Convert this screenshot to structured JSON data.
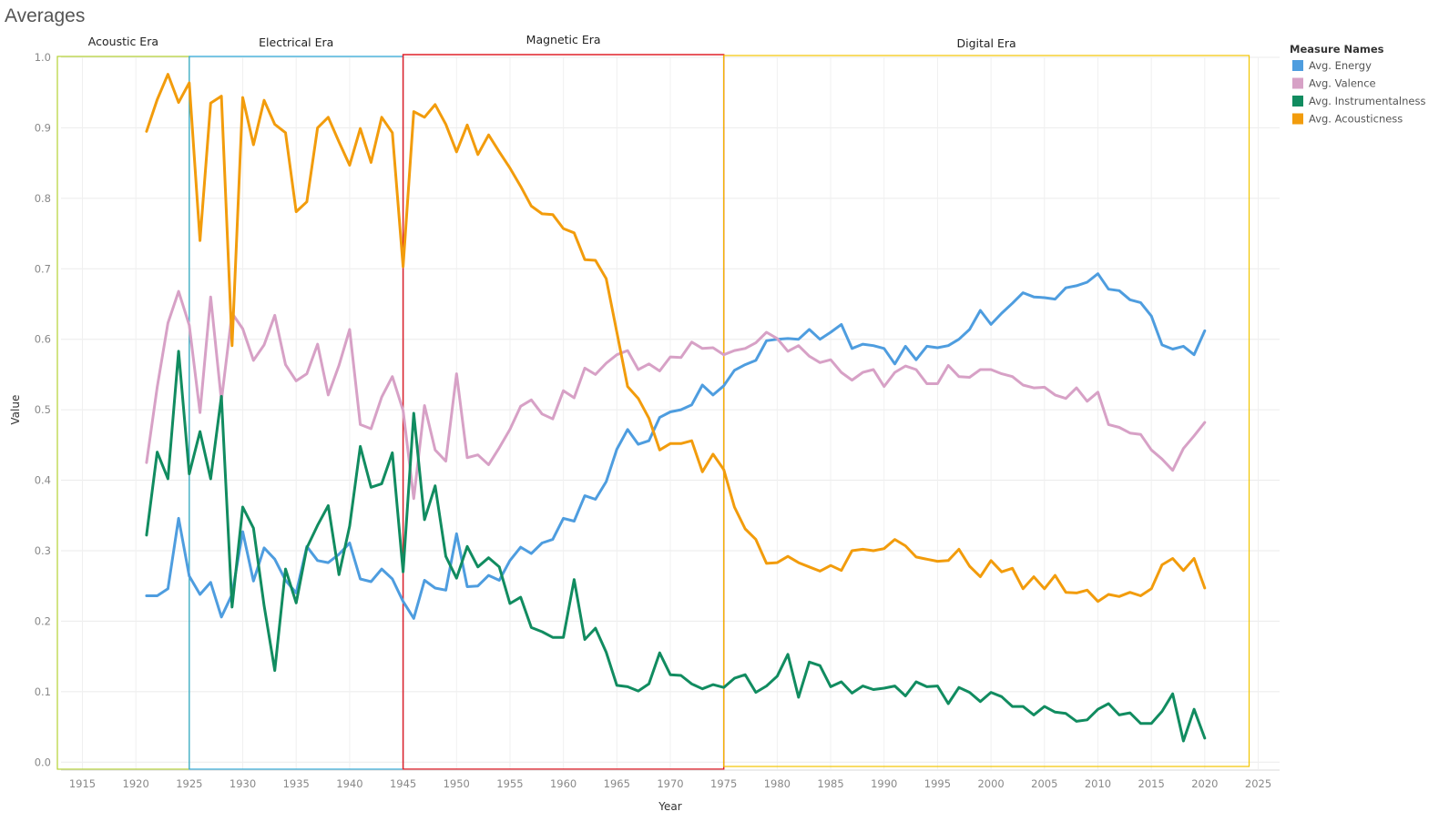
{
  "page": {
    "title": "Averages"
  },
  "chart_data": {
    "type": "line",
    "xlabel": "Year",
    "ylabel": "Value",
    "xlim": [
      1913,
      1927
    ],
    "xlim_full": [
      1913,
      2027
    ],
    "ylim": [
      -0.01,
      1.0
    ],
    "x_ticks": [
      1915,
      1920,
      1925,
      1930,
      1935,
      1940,
      1945,
      1950,
      1955,
      1960,
      1965,
      1970,
      1975,
      1980,
      1985,
      1990,
      1995,
      2000,
      2005,
      2010,
      2015,
      2020,
      2025
    ],
    "y_ticks": [
      0.0,
      0.1,
      0.2,
      0.3,
      0.4,
      0.5,
      0.6,
      0.7,
      0.8,
      0.9,
      1.0
    ],
    "y_tick_labels": [
      "0.0",
      "0.1",
      "0.2",
      "0.3",
      "0.4",
      "0.5",
      "0.6",
      "0.7",
      "0.8",
      "0.9",
      "1.0"
    ],
    "grid": true,
    "legend": {
      "title": "Measure Names",
      "placement": "top-right"
    },
    "eras": [
      {
        "name": "Acoustic Era",
        "start": 1913,
        "end": 1925,
        "color": "#b5d334"
      },
      {
        "name": "Electrical Era",
        "start": 1925,
        "end": 1945,
        "color": "#2aa8d8"
      },
      {
        "name": "Magnetic Era",
        "start": 1945,
        "end": 1975,
        "color": "#e0202a"
      },
      {
        "name": "Digital Era",
        "start": 1975,
        "end": 2025,
        "color": "#f2c500"
      }
    ],
    "x": [
      1921,
      1922,
      1923,
      1924,
      1925,
      1926,
      1927,
      1928,
      1929,
      1930,
      1931,
      1932,
      1933,
      1934,
      1935,
      1936,
      1937,
      1938,
      1939,
      1940,
      1941,
      1942,
      1943,
      1944,
      1945,
      1946,
      1947,
      1948,
      1949,
      1950,
      1951,
      1952,
      1953,
      1954,
      1955,
      1956,
      1957,
      1958,
      1959,
      1960,
      1961,
      1962,
      1963,
      1964,
      1965,
      1966,
      1967,
      1968,
      1969,
      1970,
      1971,
      1972,
      1973,
      1974,
      1975,
      1976,
      1977,
      1978,
      1979,
      1980,
      1981,
      1982,
      1983,
      1984,
      1985,
      1986,
      1987,
      1988,
      1989,
      1990,
      1991,
      1992,
      1993,
      1994,
      1995,
      1996,
      1997,
      1998,
      1999,
      2000,
      2001,
      2002,
      2003,
      2004,
      2005,
      2006,
      2007,
      2008,
      2009,
      2010,
      2011,
      2012,
      2013,
      2014,
      2015,
      2016,
      2017,
      2018,
      2019,
      2020
    ],
    "series": [
      {
        "name": "Avg. Energy",
        "color": "#4e9ddf",
        "values": [
          0.236,
          0.236,
          0.246,
          0.346,
          0.264,
          0.238,
          0.255,
          0.206,
          0.238,
          0.327,
          0.257,
          0.304,
          0.288,
          0.258,
          0.24,
          0.306,
          0.286,
          0.283,
          0.295,
          0.311,
          0.26,
          0.256,
          0.274,
          0.26,
          0.228,
          0.204,
          0.258,
          0.247,
          0.244,
          0.324,
          0.249,
          0.25,
          0.265,
          0.258,
          0.286,
          0.305,
          0.296,
          0.311,
          0.316,
          0.346,
          0.342,
          0.378,
          0.373,
          0.398,
          0.444,
          0.472,
          0.451,
          0.456,
          0.489,
          0.497,
          0.5,
          0.507,
          0.535,
          0.521,
          0.534,
          0.556,
          0.564,
          0.57,
          0.598,
          0.6,
          0.601,
          0.6,
          0.614,
          0.6,
          0.61,
          0.621,
          0.587,
          0.593,
          0.591,
          0.587,
          0.565,
          0.59,
          0.571,
          0.59,
          0.588,
          0.591,
          0.6,
          0.614,
          0.641,
          0.621,
          0.637,
          0.651,
          0.666,
          0.66,
          0.659,
          0.657,
          0.673,
          0.676,
          0.681,
          0.693,
          0.671,
          0.669,
          0.656,
          0.652,
          0.633,
          0.592,
          0.586,
          0.59,
          0.578,
          0.612
        ]
      },
      {
        "name": "Avg. Valence",
        "color": "#d7a1c6",
        "values": [
          0.425,
          0.532,
          0.623,
          0.668,
          0.62,
          0.496,
          0.66,
          0.513,
          0.637,
          0.615,
          0.57,
          0.592,
          0.634,
          0.564,
          0.541,
          0.551,
          0.593,
          0.521,
          0.563,
          0.614,
          0.479,
          0.473,
          0.518,
          0.547,
          0.499,
          0.374,
          0.506,
          0.443,
          0.427,
          0.551,
          0.432,
          0.436,
          0.422,
          0.446,
          0.472,
          0.505,
          0.514,
          0.494,
          0.487,
          0.527,
          0.517,
          0.559,
          0.55,
          0.566,
          0.578,
          0.584,
          0.557,
          0.565,
          0.555,
          0.575,
          0.574,
          0.596,
          0.587,
          0.588,
          0.578,
          0.584,
          0.587,
          0.595,
          0.61,
          0.601,
          0.583,
          0.591,
          0.576,
          0.567,
          0.571,
          0.553,
          0.542,
          0.553,
          0.557,
          0.533,
          0.553,
          0.562,
          0.557,
          0.537,
          0.537,
          0.563,
          0.547,
          0.546,
          0.557,
          0.557,
          0.551,
          0.547,
          0.535,
          0.531,
          0.532,
          0.521,
          0.516,
          0.531,
          0.512,
          0.525,
          0.479,
          0.475,
          0.467,
          0.465,
          0.443,
          0.43,
          0.414,
          0.445,
          0.463,
          0.482
        ]
      },
      {
        "name": "Avg. Instrumentalness",
        "color": "#118c60",
        "values": [
          0.322,
          0.44,
          0.402,
          0.583,
          0.409,
          0.469,
          0.402,
          0.519,
          0.22,
          0.362,
          0.332,
          0.222,
          0.13,
          0.274,
          0.226,
          0.304,
          0.336,
          0.364,
          0.266,
          0.335,
          0.448,
          0.39,
          0.395,
          0.439,
          0.27,
          0.495,
          0.344,
          0.392,
          0.292,
          0.261,
          0.306,
          0.277,
          0.29,
          0.277,
          0.225,
          0.234,
          0.191,
          0.185,
          0.177,
          0.177,
          0.259,
          0.174,
          0.19,
          0.156,
          0.109,
          0.107,
          0.101,
          0.111,
          0.155,
          0.124,
          0.123,
          0.111,
          0.104,
          0.11,
          0.106,
          0.119,
          0.124,
          0.099,
          0.108,
          0.122,
          0.153,
          0.092,
          0.142,
          0.137,
          0.107,
          0.114,
          0.098,
          0.108,
          0.103,
          0.105,
          0.108,
          0.094,
          0.114,
          0.107,
          0.108,
          0.083,
          0.106,
          0.099,
          0.086,
          0.099,
          0.093,
          0.079,
          0.079,
          0.067,
          0.079,
          0.071,
          0.069,
          0.058,
          0.06,
          0.075,
          0.083,
          0.067,
          0.07,
          0.055,
          0.055,
          0.072,
          0.097,
          0.03,
          0.075,
          0.034
        ]
      },
      {
        "name": "Avg. Acousticness",
        "color": "#f29c0c",
        "values": [
          0.895,
          0.94,
          0.976,
          0.936,
          0.964,
          0.74,
          0.935,
          0.945,
          0.591,
          0.943,
          0.876,
          0.939,
          0.905,
          0.893,
          0.781,
          0.795,
          0.9,
          0.915,
          0.88,
          0.847,
          0.899,
          0.851,
          0.915,
          0.893,
          0.703,
          0.923,
          0.915,
          0.933,
          0.905,
          0.866,
          0.904,
          0.862,
          0.89,
          0.866,
          0.843,
          0.817,
          0.789,
          0.778,
          0.777,
          0.757,
          0.751,
          0.713,
          0.712,
          0.686,
          0.61,
          0.533,
          0.516,
          0.488,
          0.443,
          0.452,
          0.452,
          0.456,
          0.412,
          0.437,
          0.415,
          0.362,
          0.331,
          0.316,
          0.282,
          0.283,
          0.292,
          0.283,
          0.277,
          0.271,
          0.279,
          0.272,
          0.3,
          0.302,
          0.3,
          0.303,
          0.316,
          0.307,
          0.291,
          0.288,
          0.285,
          0.286,
          0.302,
          0.278,
          0.263,
          0.286,
          0.27,
          0.275,
          0.246,
          0.263,
          0.246,
          0.265,
          0.241,
          0.24,
          0.244,
          0.228,
          0.238,
          0.235,
          0.241,
          0.236,
          0.246,
          0.28,
          0.289,
          0.272,
          0.289,
          0.247
        ]
      }
    ]
  }
}
